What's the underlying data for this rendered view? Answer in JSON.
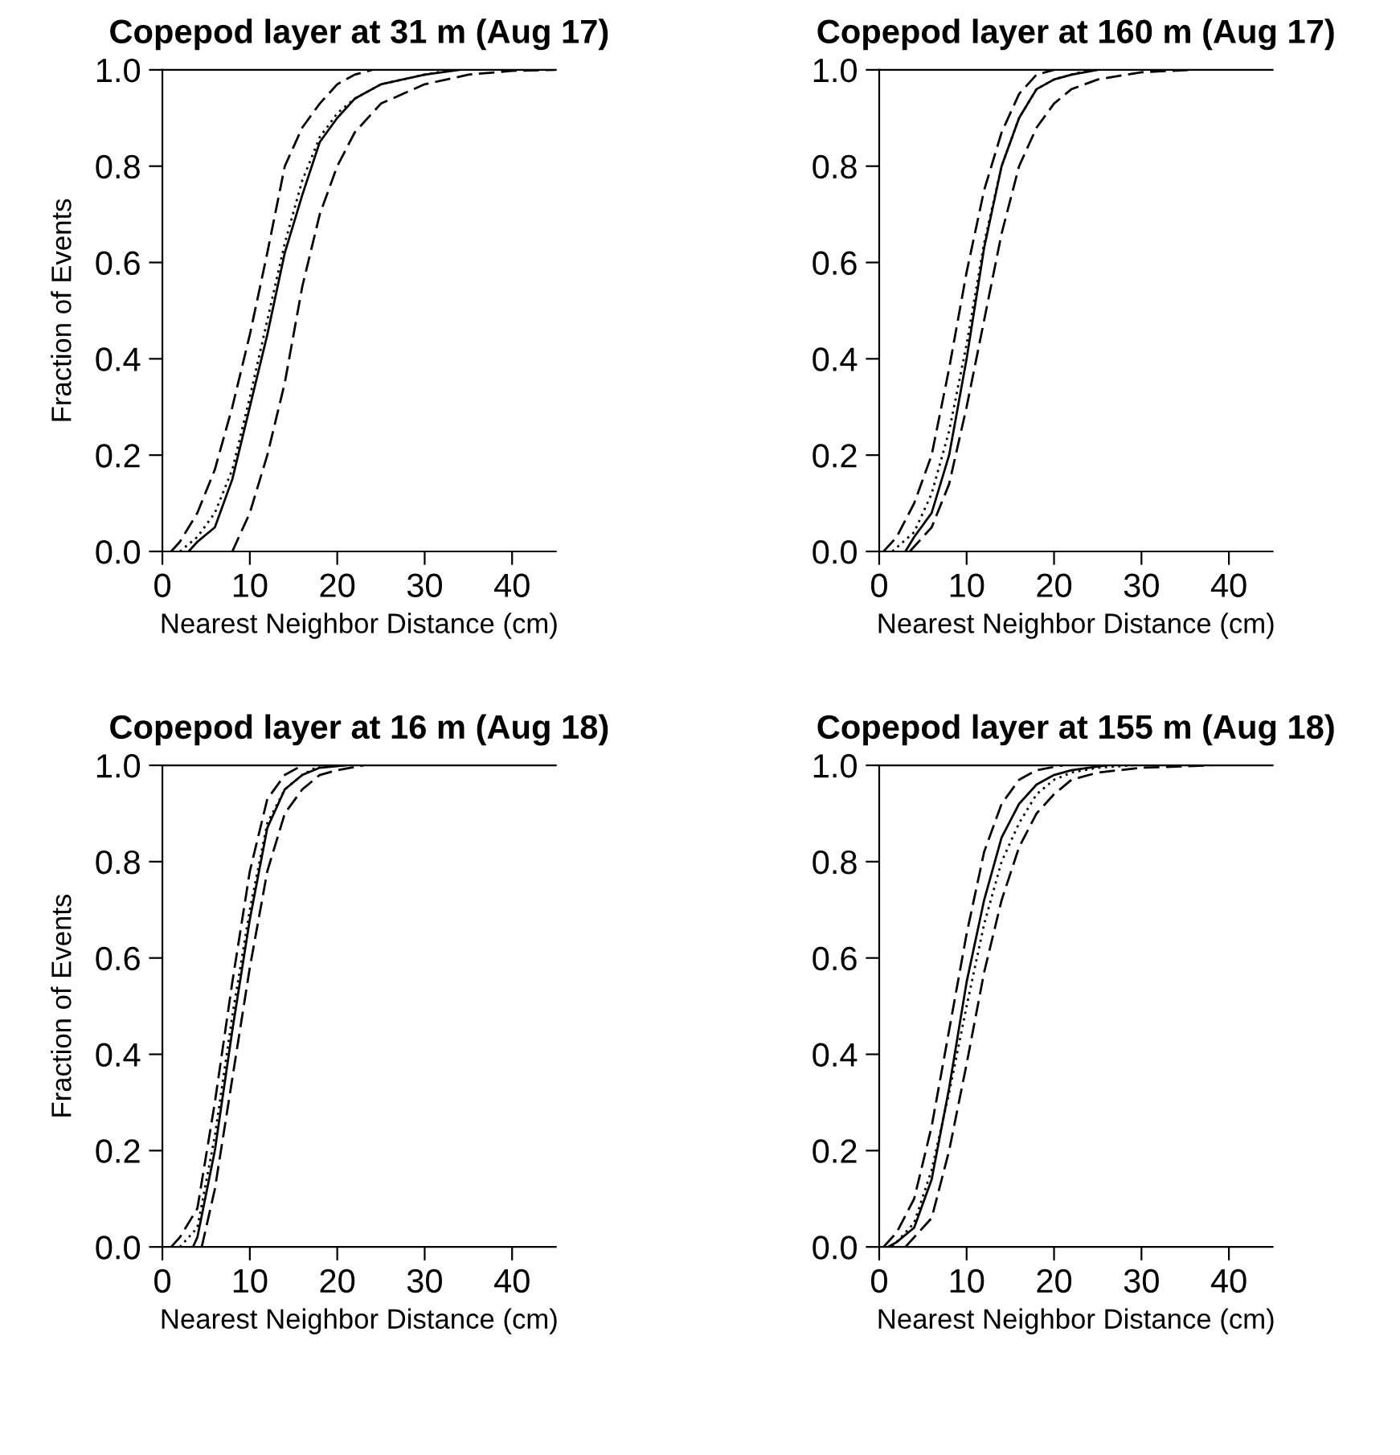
{
  "chart_data": [
    {
      "type": "line",
      "title": "Copepod layer at 31 m (Aug 17)",
      "xlabel": "Nearest Neighbor Distance (cm)",
      "ylabel": "Fraction of Events",
      "series": [
        {
          "color": "#000000",
          "line_style": "dashed",
          "x": [
            1,
            2,
            4,
            6,
            8,
            10,
            12,
            14,
            16,
            18,
            20,
            22,
            24
          ],
          "values": [
            0,
            0.02,
            0.08,
            0.17,
            0.3,
            0.45,
            0.62,
            0.8,
            0.88,
            0.93,
            0.97,
            0.99,
            1
          ]
        },
        {
          "color": "#000000",
          "line_style": "solid",
          "x": [
            3,
            4,
            6,
            8,
            10,
            12,
            14,
            16,
            18,
            20,
            22,
            25,
            30,
            34
          ],
          "values": [
            0,
            0.02,
            0.05,
            0.15,
            0.3,
            0.45,
            0.62,
            0.74,
            0.85,
            0.9,
            0.94,
            0.97,
            0.99,
            1
          ]
        },
        {
          "color": "#000000",
          "line_style": "dotted",
          "x": [
            2,
            4,
            6,
            8,
            10,
            12,
            14,
            16,
            18,
            20,
            22,
            25,
            30,
            33
          ],
          "values": [
            0,
            0.03,
            0.08,
            0.17,
            0.32,
            0.48,
            0.64,
            0.77,
            0.86,
            0.91,
            0.94,
            0.97,
            0.99,
            1
          ]
        },
        {
          "color": "#000000",
          "line_style": "dashed",
          "x": [
            8,
            10,
            12,
            14,
            16,
            18,
            20,
            22,
            25,
            30,
            35,
            40,
            45
          ],
          "values": [
            0,
            0.08,
            0.2,
            0.35,
            0.55,
            0.7,
            0.8,
            0.87,
            0.93,
            0.97,
            0.99,
            0.998,
            1
          ]
        }
      ],
      "xlim": [
        0,
        45
      ],
      "xticks": [
        0,
        10,
        20,
        30,
        40
      ],
      "ylim": [
        0,
        1
      ],
      "yticks": [
        {
          "value": 0,
          "label": "0.0"
        },
        {
          "value": 0.2,
          "label": "0.2"
        },
        {
          "value": 0.4,
          "label": "0.4"
        },
        {
          "value": 0.6,
          "label": "0.6"
        },
        {
          "value": 0.8,
          "label": "0.8"
        },
        {
          "value": 1,
          "label": "1.0"
        }
      ],
      "grid": false,
      "legend": false
    },
    {
      "type": "line",
      "title": "Copepod layer at 160 m (Aug 17)",
      "xlabel": "Nearest Neighbor Distance (cm)",
      "series": [
        {
          "color": "#000000",
          "line_style": "dashed",
          "x": [
            0.5,
            2,
            4,
            6,
            8,
            10,
            12,
            14,
            16,
            18,
            20
          ],
          "values": [
            0,
            0.03,
            0.1,
            0.2,
            0.38,
            0.58,
            0.75,
            0.87,
            0.95,
            0.99,
            1
          ]
        },
        {
          "color": "#000000",
          "line_style": "solid",
          "x": [
            3,
            4,
            6,
            8,
            10,
            12,
            14,
            16,
            18,
            20,
            22,
            25
          ],
          "values": [
            0,
            0.03,
            0.08,
            0.2,
            0.4,
            0.63,
            0.8,
            0.9,
            0.96,
            0.98,
            0.99,
            1
          ]
        },
        {
          "color": "#000000",
          "line_style": "dotted",
          "x": [
            1.5,
            4,
            6,
            8,
            10,
            12,
            14,
            16,
            18,
            20,
            22,
            24
          ],
          "values": [
            0,
            0.04,
            0.12,
            0.25,
            0.43,
            0.64,
            0.8,
            0.9,
            0.96,
            0.98,
            0.99,
            1
          ]
        },
        {
          "color": "#000000",
          "line_style": "dashed",
          "x": [
            3.5,
            4,
            6,
            8,
            10,
            12,
            14,
            16,
            18,
            20,
            22,
            25,
            30,
            36
          ],
          "values": [
            0,
            0.01,
            0.05,
            0.14,
            0.3,
            0.48,
            0.66,
            0.8,
            0.88,
            0.93,
            0.96,
            0.98,
            0.995,
            1
          ]
        }
      ],
      "xlim": [
        0,
        45
      ],
      "xticks": [
        0,
        10,
        20,
        30,
        40
      ],
      "ylim": [
        0,
        1
      ],
      "yticks": [
        {
          "value": 0,
          "label": "0.0"
        },
        {
          "value": 0.2,
          "label": "0.2"
        },
        {
          "value": 0.4,
          "label": "0.4"
        },
        {
          "value": 0.6,
          "label": "0.6"
        },
        {
          "value": 0.8,
          "label": "0.8"
        },
        {
          "value": 1,
          "label": "1.0"
        }
      ],
      "grid": false,
      "legend": false
    },
    {
      "type": "line",
      "title": "Copepod layer at 16 m (Aug 18)",
      "xlabel": "Nearest Neighbor Distance (cm)",
      "ylabel": "Fraction of Events",
      "series": [
        {
          "color": "#000000",
          "line_style": "dashed",
          "x": [
            1,
            2,
            4,
            6,
            8,
            10,
            12,
            14,
            16
          ],
          "values": [
            0,
            0.02,
            0.08,
            0.3,
            0.55,
            0.78,
            0.93,
            0.98,
            1
          ]
        },
        {
          "color": "#000000",
          "line_style": "solid",
          "x": [
            3.5,
            4,
            6,
            8,
            10,
            12,
            14,
            16,
            18,
            21
          ],
          "values": [
            0,
            0.02,
            0.2,
            0.45,
            0.68,
            0.87,
            0.95,
            0.98,
            0.995,
            1
          ]
        },
        {
          "color": "#000000",
          "line_style": "dotted",
          "x": [
            2,
            4,
            6,
            8,
            10,
            12,
            14,
            16,
            18
          ],
          "values": [
            0,
            0.04,
            0.23,
            0.48,
            0.7,
            0.88,
            0.95,
            0.98,
            1
          ]
        },
        {
          "color": "#000000",
          "line_style": "dashed",
          "x": [
            4.5,
            6,
            8,
            10,
            12,
            14,
            16,
            18,
            20,
            23
          ],
          "values": [
            0,
            0.12,
            0.35,
            0.58,
            0.78,
            0.9,
            0.95,
            0.98,
            0.99,
            1
          ]
        }
      ],
      "xlim": [
        0,
        45
      ],
      "xticks": [
        0,
        10,
        20,
        30,
        40
      ],
      "ylim": [
        0,
        1
      ],
      "yticks": [
        {
          "value": 0,
          "label": "0.0"
        },
        {
          "value": 0.2,
          "label": "0.2"
        },
        {
          "value": 0.4,
          "label": "0.4"
        },
        {
          "value": 0.6,
          "label": "0.6"
        },
        {
          "value": 0.8,
          "label": "0.8"
        },
        {
          "value": 1,
          "label": "1.0"
        }
      ],
      "grid": false,
      "legend": false
    },
    {
      "type": "line",
      "title": "Copepod layer at 155 m (Aug 18)",
      "xlabel": "Nearest Neighbor Distance (cm)",
      "series": [
        {
          "color": "#000000",
          "line_style": "dashed",
          "x": [
            0.5,
            2,
            4,
            6,
            8,
            10,
            12,
            14,
            16,
            18,
            21
          ],
          "values": [
            0,
            0.03,
            0.1,
            0.25,
            0.45,
            0.65,
            0.82,
            0.92,
            0.97,
            0.99,
            1
          ]
        },
        {
          "color": "#000000",
          "line_style": "solid",
          "x": [
            1,
            2,
            4,
            6,
            8,
            10,
            12,
            14,
            16,
            18,
            20,
            22,
            26
          ],
          "values": [
            0,
            0.01,
            0.04,
            0.14,
            0.33,
            0.55,
            0.72,
            0.85,
            0.92,
            0.96,
            0.98,
            0.99,
            1
          ]
        },
        {
          "color": "#000000",
          "line_style": "dotted",
          "x": [
            1.5,
            2,
            4,
            6,
            8,
            10,
            12,
            14,
            16,
            18,
            20,
            22,
            25,
            29
          ],
          "values": [
            0,
            0.01,
            0.05,
            0.16,
            0.32,
            0.5,
            0.67,
            0.8,
            0.88,
            0.94,
            0.97,
            0.985,
            0.995,
            1
          ]
        },
        {
          "color": "#000000",
          "line_style": "dashed",
          "x": [
            3,
            4,
            6,
            8,
            10,
            12,
            14,
            16,
            18,
            20,
            22,
            25,
            30,
            38
          ],
          "values": [
            0,
            0.02,
            0.06,
            0.2,
            0.38,
            0.57,
            0.72,
            0.83,
            0.9,
            0.94,
            0.97,
            0.985,
            0.995,
            1
          ]
        }
      ],
      "xlim": [
        0,
        45
      ],
      "xticks": [
        0,
        10,
        20,
        30,
        40
      ],
      "ylim": [
        0,
        1
      ],
      "yticks": [
        {
          "value": 0,
          "label": "0.0"
        },
        {
          "value": 0.2,
          "label": "0.2"
        },
        {
          "value": 0.4,
          "label": "0.4"
        },
        {
          "value": 0.6,
          "label": "0.6"
        },
        {
          "value": 0.8,
          "label": "0.8"
        },
        {
          "value": 1,
          "label": "1.0"
        }
      ],
      "grid": false,
      "legend": false
    }
  ]
}
